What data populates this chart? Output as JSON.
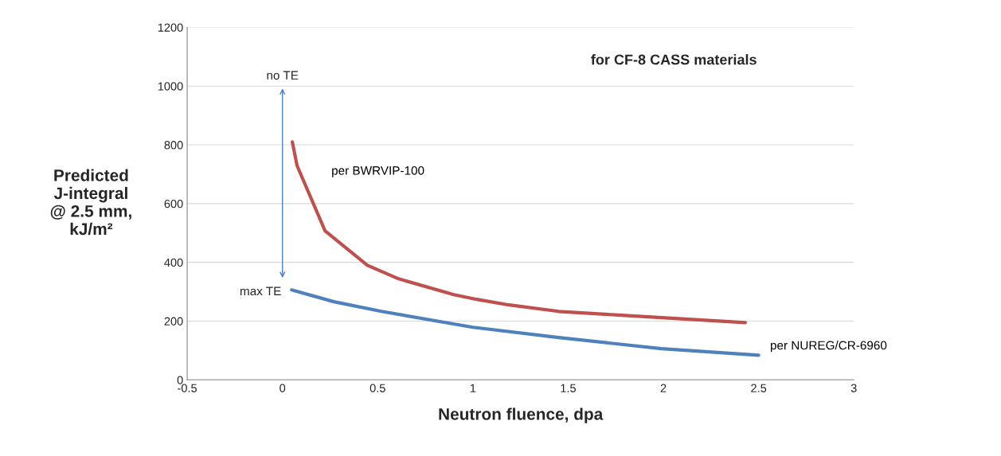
{
  "chart_data": {
    "type": "line",
    "xlabel": "Neutron fluence, dpa",
    "ylabel": "Predicted\nJ-integral\n@ 2.5 mm,\nkJ/m²",
    "xlim": [
      -0.5,
      3
    ],
    "xticks": [
      -0.5,
      0,
      0.5,
      1,
      1.5,
      2,
      2.5,
      3
    ],
    "ylim": [
      0,
      1200
    ],
    "yticks": [
      0,
      200,
      400,
      600,
      800,
      1000,
      1200
    ],
    "grid": "y",
    "legend": false,
    "marker": "none",
    "line_style": "solid",
    "series": [
      {
        "name": "per BWRVIP-100",
        "color": "#c0504d",
        "x": [
          0.052,
          0.077,
          0.224,
          0.446,
          0.61,
          0.9,
          1.02,
          1.19,
          1.45,
          1.78,
          2.43
        ],
        "values": [
          810,
          729,
          507,
          390,
          344,
          290,
          274,
          255,
          233,
          220,
          195
        ]
      },
      {
        "name": "per NUREG/CR-6960",
        "color": "#4f81bd",
        "x": [
          0.048,
          0.27,
          0.52,
          1.0,
          1.45,
          1.99,
          2.5
        ],
        "values": [
          306,
          266,
          233,
          179,
          144,
          106,
          84
        ]
      }
    ],
    "annotations": [
      "for CF-8 CASS materials",
      "no TE",
      "max TE"
    ]
  }
}
